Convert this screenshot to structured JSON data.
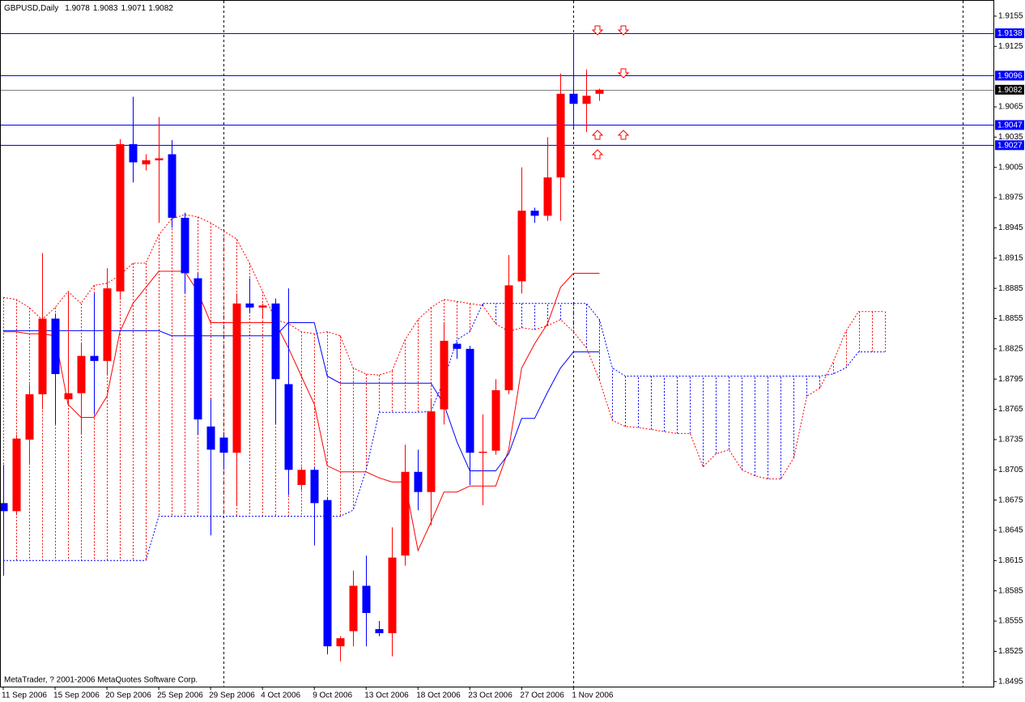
{
  "chart_data": {
    "type": "candlestick",
    "title": "GBPUSD,Daily",
    "footer": "MetaTrader, ? 2001-2006 MetaQuotes Software Corp.",
    "up_color": "#ff0000",
    "down_color": "#0000ff",
    "open": [
      1.8672,
      1.8664,
      1.8735,
      1.878,
      1.8855,
      1.8775,
      1.8781,
      1.8818,
      1.8813,
      1.8882,
      1.9028,
      1.9008,
      1.9012,
      1.9018,
      1.8955,
      1.8895,
      1.8748,
      1.8737,
      1.8722,
      1.887,
      1.8866,
      1.887,
      1.879,
      1.869,
      1.8705,
      1.8675,
      1.853,
      1.8545,
      1.859,
      1.8547,
      1.8543,
      1.862,
      1.8703,
      1.8683,
      1.8765,
      1.883,
      1.8825,
      1.8722,
      1.8724,
      1.8784,
      1.8892,
      1.8962,
      1.8957,
      1.8995,
      1.9078,
      1.9068,
      1.9078
    ],
    "high": [
      1.871,
      1.874,
      1.879,
      1.892,
      1.886,
      1.8882,
      1.883,
      1.888,
      1.8905,
      1.9033,
      1.9075,
      1.9018,
      1.9055,
      1.9032,
      1.896,
      1.89,
      1.8775,
      1.874,
      1.888,
      1.8895,
      1.887,
      1.8875,
      1.8885,
      1.8708,
      1.8708,
      1.8678,
      1.854,
      1.8605,
      1.862,
      1.8555,
      1.8648,
      1.873,
      1.8725,
      1.8775,
      1.885,
      1.8832,
      1.8828,
      1.876,
      1.8795,
      1.8918,
      1.9005,
      1.8965,
      1.9035,
      1.9098,
      1.9138,
      1.9102,
      1.9083
    ],
    "low": [
      1.86,
      1.866,
      1.871,
      1.8765,
      1.875,
      1.877,
      1.874,
      1.876,
      1.88,
      1.8875,
      1.899,
      1.9002,
      1.895,
      1.8945,
      1.888,
      1.874,
      1.864,
      1.8705,
      1.867,
      1.886,
      1.8855,
      1.875,
      1.868,
      1.8685,
      1.863,
      1.8522,
      1.8515,
      1.853,
      1.853,
      1.854,
      1.852,
      1.861,
      1.8665,
      1.865,
      1.875,
      1.8815,
      1.869,
      1.867,
      1.872,
      1.878,
      1.888,
      1.895,
      1.8952,
      1.8952,
      1.9045,
      1.904,
      1.9071
    ],
    "close": [
      1.8664,
      1.8736,
      1.878,
      1.8855,
      1.88,
      1.8781,
      1.8818,
      1.8813,
      1.8885,
      1.9028,
      1.901,
      1.9012,
      1.9014,
      1.8955,
      1.89,
      1.8755,
      1.8725,
      1.8722,
      1.887,
      1.8866,
      1.8868,
      1.8795,
      1.8705,
      1.8705,
      1.8672,
      1.853,
      1.8538,
      1.859,
      1.8563,
      1.8543,
      1.8618,
      1.8703,
      1.8683,
      1.8763,
      1.8833,
      1.8825,
      1.8722,
      1.8723,
      1.8784,
      1.8888,
      1.8962,
      1.8957,
      1.8995,
      1.9078,
      1.9068,
      1.9076,
      1.9082
    ],
    "lines": [
      {
        "color": "#ff0000",
        "values": [
          1.8842,
          1.8842,
          1.884,
          1.884,
          1.8838,
          1.877,
          1.8757,
          1.8757,
          1.8778,
          1.8842,
          1.887,
          1.8886,
          1.8902,
          1.8902,
          1.8902,
          1.8882,
          1.8851,
          1.8851,
          1.8851,
          1.8851,
          1.8851,
          1.8851,
          1.8826,
          1.8798,
          1.877,
          1.8709,
          1.8703,
          1.8703,
          1.8703,
          1.8697,
          1.8693,
          1.8693,
          1.8625,
          1.8653,
          1.8683,
          1.8683,
          1.8689,
          1.8689,
          1.8689,
          1.8725,
          1.8806,
          1.883,
          1.885,
          1.8886,
          1.89,
          1.89,
          1.89
        ]
      },
      {
        "color": "#0000ff",
        "values": [
          1.8843,
          1.8843,
          1.8843,
          1.8843,
          1.8843,
          1.8843,
          1.8843,
          1.8843,
          1.8843,
          1.8843,
          1.8843,
          1.8843,
          1.8843,
          1.8838,
          1.8838,
          1.8838,
          1.8838,
          1.8838,
          1.8838,
          1.8838,
          1.8838,
          1.8838,
          1.8851,
          1.8851,
          1.8851,
          1.8798,
          1.8791,
          1.8791,
          1.8791,
          1.8791,
          1.8791,
          1.8791,
          1.8791,
          1.8791,
          1.877,
          1.8733,
          1.8704,
          1.8704,
          1.8704,
          1.8721,
          1.8756,
          1.8756,
          1.8782,
          1.8806,
          1.8822,
          1.8822,
          1.8822
        ]
      }
    ],
    "cloud": {
      "span_a": {
        "color": "#ff0000",
        "values": [
          1.8876,
          1.8874,
          1.8866,
          1.8854,
          1.8866,
          1.8882,
          1.887,
          1.8888,
          1.889,
          1.8898,
          1.891,
          1.891,
          1.8938,
          1.8954,
          1.8958,
          1.8956,
          1.895,
          1.8942,
          1.8934,
          1.891,
          1.8882,
          1.8854,
          1.885,
          1.8842,
          1.884,
          1.8842,
          1.8838,
          1.8806,
          1.88,
          1.8799,
          1.8803,
          1.8834,
          1.8854,
          1.8866,
          1.8874,
          1.8872,
          1.887,
          1.8868,
          1.885,
          1.8842,
          1.8846,
          1.8844,
          1.8848,
          1.8854,
          1.8842,
          1.8826,
          1.8794,
          1.8754,
          1.8748,
          1.8747,
          1.8745,
          1.8743,
          1.8741,
          1.8741,
          1.8708,
          1.8721,
          1.8725,
          1.8705,
          1.8699,
          1.8696,
          1.8696,
          1.8717,
          1.8778,
          1.8786,
          1.8811,
          1.8842,
          1.8862,
          1.8862,
          1.8862
        ]
      },
      "span_b": {
        "color": "#0000ff",
        "values": [
          1.8615,
          1.8615,
          1.8615,
          1.8615,
          1.8615,
          1.8615,
          1.8615,
          1.8615,
          1.8615,
          1.8615,
          1.8615,
          1.8615,
          1.8659,
          1.8659,
          1.8659,
          1.8659,
          1.8659,
          1.8659,
          1.8659,
          1.8659,
          1.8659,
          1.8659,
          1.8659,
          1.8659,
          1.8659,
          1.8659,
          1.8659,
          1.8665,
          1.8705,
          1.8762,
          1.8762,
          1.8762,
          1.8762,
          1.8763,
          1.8794,
          1.8834,
          1.8842,
          1.887,
          1.887,
          1.887,
          1.887,
          1.887,
          1.887,
          1.887,
          1.887,
          1.887,
          1.8854,
          1.8806,
          1.8798,
          1.8798,
          1.8798,
          1.8798,
          1.8798,
          1.8798,
          1.8798,
          1.8798,
          1.8798,
          1.8798,
          1.8798,
          1.8798,
          1.8798,
          1.8798,
          1.8798,
          1.8798,
          1.88,
          1.8806,
          1.8822,
          1.8822,
          1.8822
        ]
      }
    },
    "levels": [
      1.9138,
      1.9096,
      1.9047,
      1.9027
    ],
    "level_color": "#0000ff",
    "period_separators": [
      17,
      44,
      74
    ],
    "xlim": [
      -0.25,
      76.4
    ],
    "ylim": [
      1.849,
      1.9171
    ],
    "yticks": [
      1.9155,
      1.9125,
      1.9065,
      1.9035,
      1.9005,
      1.8975,
      1.8945,
      1.8915,
      1.8885,
      1.8855,
      1.8825,
      1.8795,
      1.8765,
      1.8735,
      1.8705,
      1.8675,
      1.8645,
      1.8615,
      1.8585,
      1.8555,
      1.8525,
      1.8495
    ],
    "xticks": [
      {
        "value": 0,
        "label": "11 Sep 2006"
      },
      {
        "value": 4,
        "label": "15 Sep 2006"
      },
      {
        "value": 8,
        "label": "20 Sep 2006"
      },
      {
        "value": 12,
        "label": "25 Sep 2006"
      },
      {
        "value": 16,
        "label": "29 Sep 2006"
      },
      {
        "value": 20,
        "label": "4 Oct 2006"
      },
      {
        "value": 24,
        "label": "9 Oct 2006"
      },
      {
        "value": 28,
        "label": "13 Oct 2006"
      },
      {
        "value": 32,
        "label": "18 Oct 2006"
      },
      {
        "value": 36,
        "label": "23 Oct 2006"
      },
      {
        "value": 40,
        "label": "27 Oct 2006"
      },
      {
        "value": 44,
        "label": "1 Nov 2006"
      }
    ]
  }
}
